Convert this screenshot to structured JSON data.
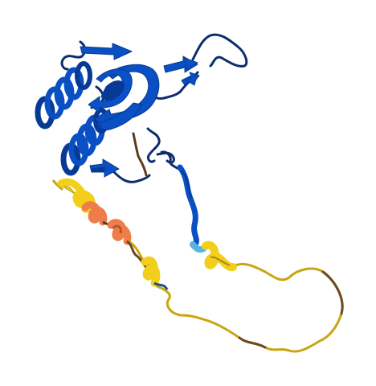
{
  "image": {
    "subject": "protein-structure-ribbon",
    "background_color": "#ffffff"
  },
  "colors": {
    "very_high_confidence": "#0a4fc4",
    "very_high_dark": "#063a94",
    "confident": "#5ab4e0",
    "low_confidence": "#f1cf1a",
    "low_dark": "#a88a05",
    "very_low_confidence": "#ee7d4a",
    "very_low_dark": "#b8552b",
    "coil_dark_blue": "#0b2f6e",
    "coil_brown": "#5a3d1c"
  }
}
